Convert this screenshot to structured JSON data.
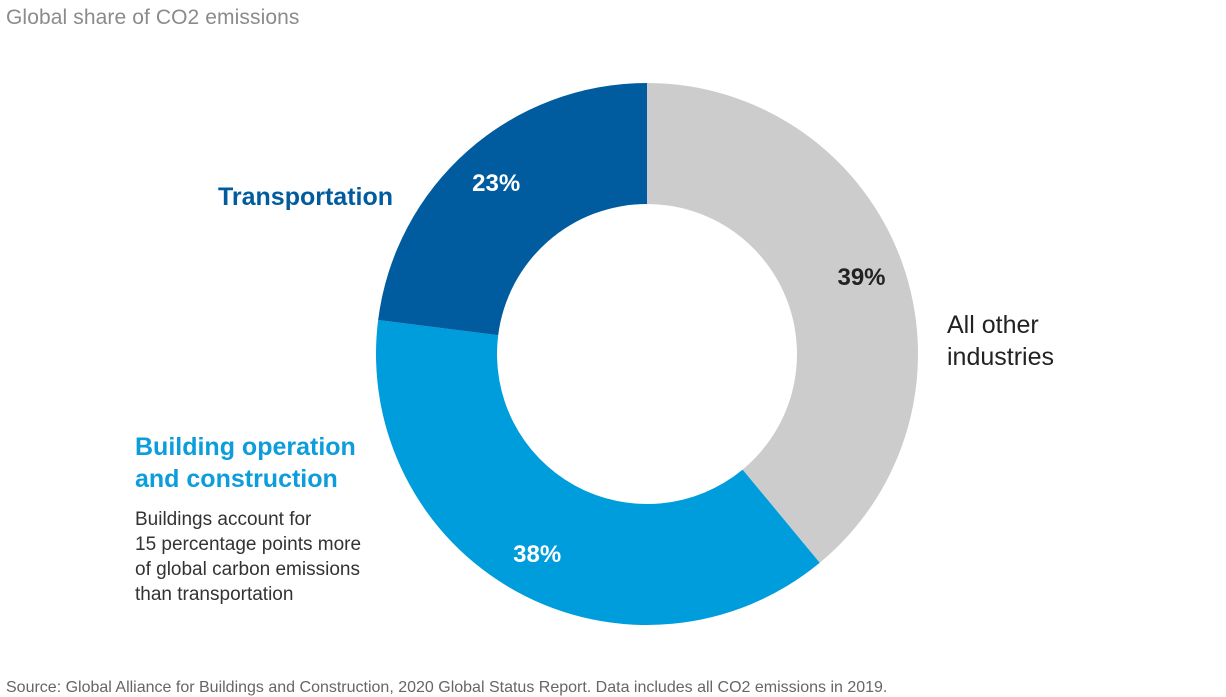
{
  "page_title": "Global share of CO2 emissions",
  "chart_data": {
    "type": "pie",
    "title": "Global share of CO2 emissions",
    "donut": true,
    "slices": [
      {
        "label": "All other industries",
        "value": 39,
        "display": "39%",
        "color": "#cccccc",
        "label_color": "#222222",
        "value_text_color": "#222222"
      },
      {
        "label": "Building operation and construction",
        "value": 38,
        "display": "38%",
        "color": "#009ddc",
        "label_color": "#0c9ddc",
        "value_text_color": "#ffffff"
      },
      {
        "label": "Transportation",
        "value": 23,
        "display": "23%",
        "color": "#005c9e",
        "label_color": "#005c9e",
        "value_text_color": "#ffffff"
      }
    ],
    "annotations": [
      {
        "slice": "Building operation and construction",
        "text": "Buildings account for 15 percentage points more of global carbon emissions than transportation"
      }
    ],
    "start_angle": "12 o'clock",
    "direction": "clockwise"
  },
  "labels": {
    "transportation": "Transportation",
    "building_line1": "Building operation",
    "building_line2": "and construction",
    "other_line1": "All other",
    "other_line2": "industries"
  },
  "annotation_lines": [
    "Buildings account for",
    "15 percentage points more",
    "of global carbon emissions",
    "than transportation"
  ],
  "source_note": "Source: Global Alliance for Buildings and Construction, 2020 Global Status Report. Data includes all CO2 emissions in 2019."
}
